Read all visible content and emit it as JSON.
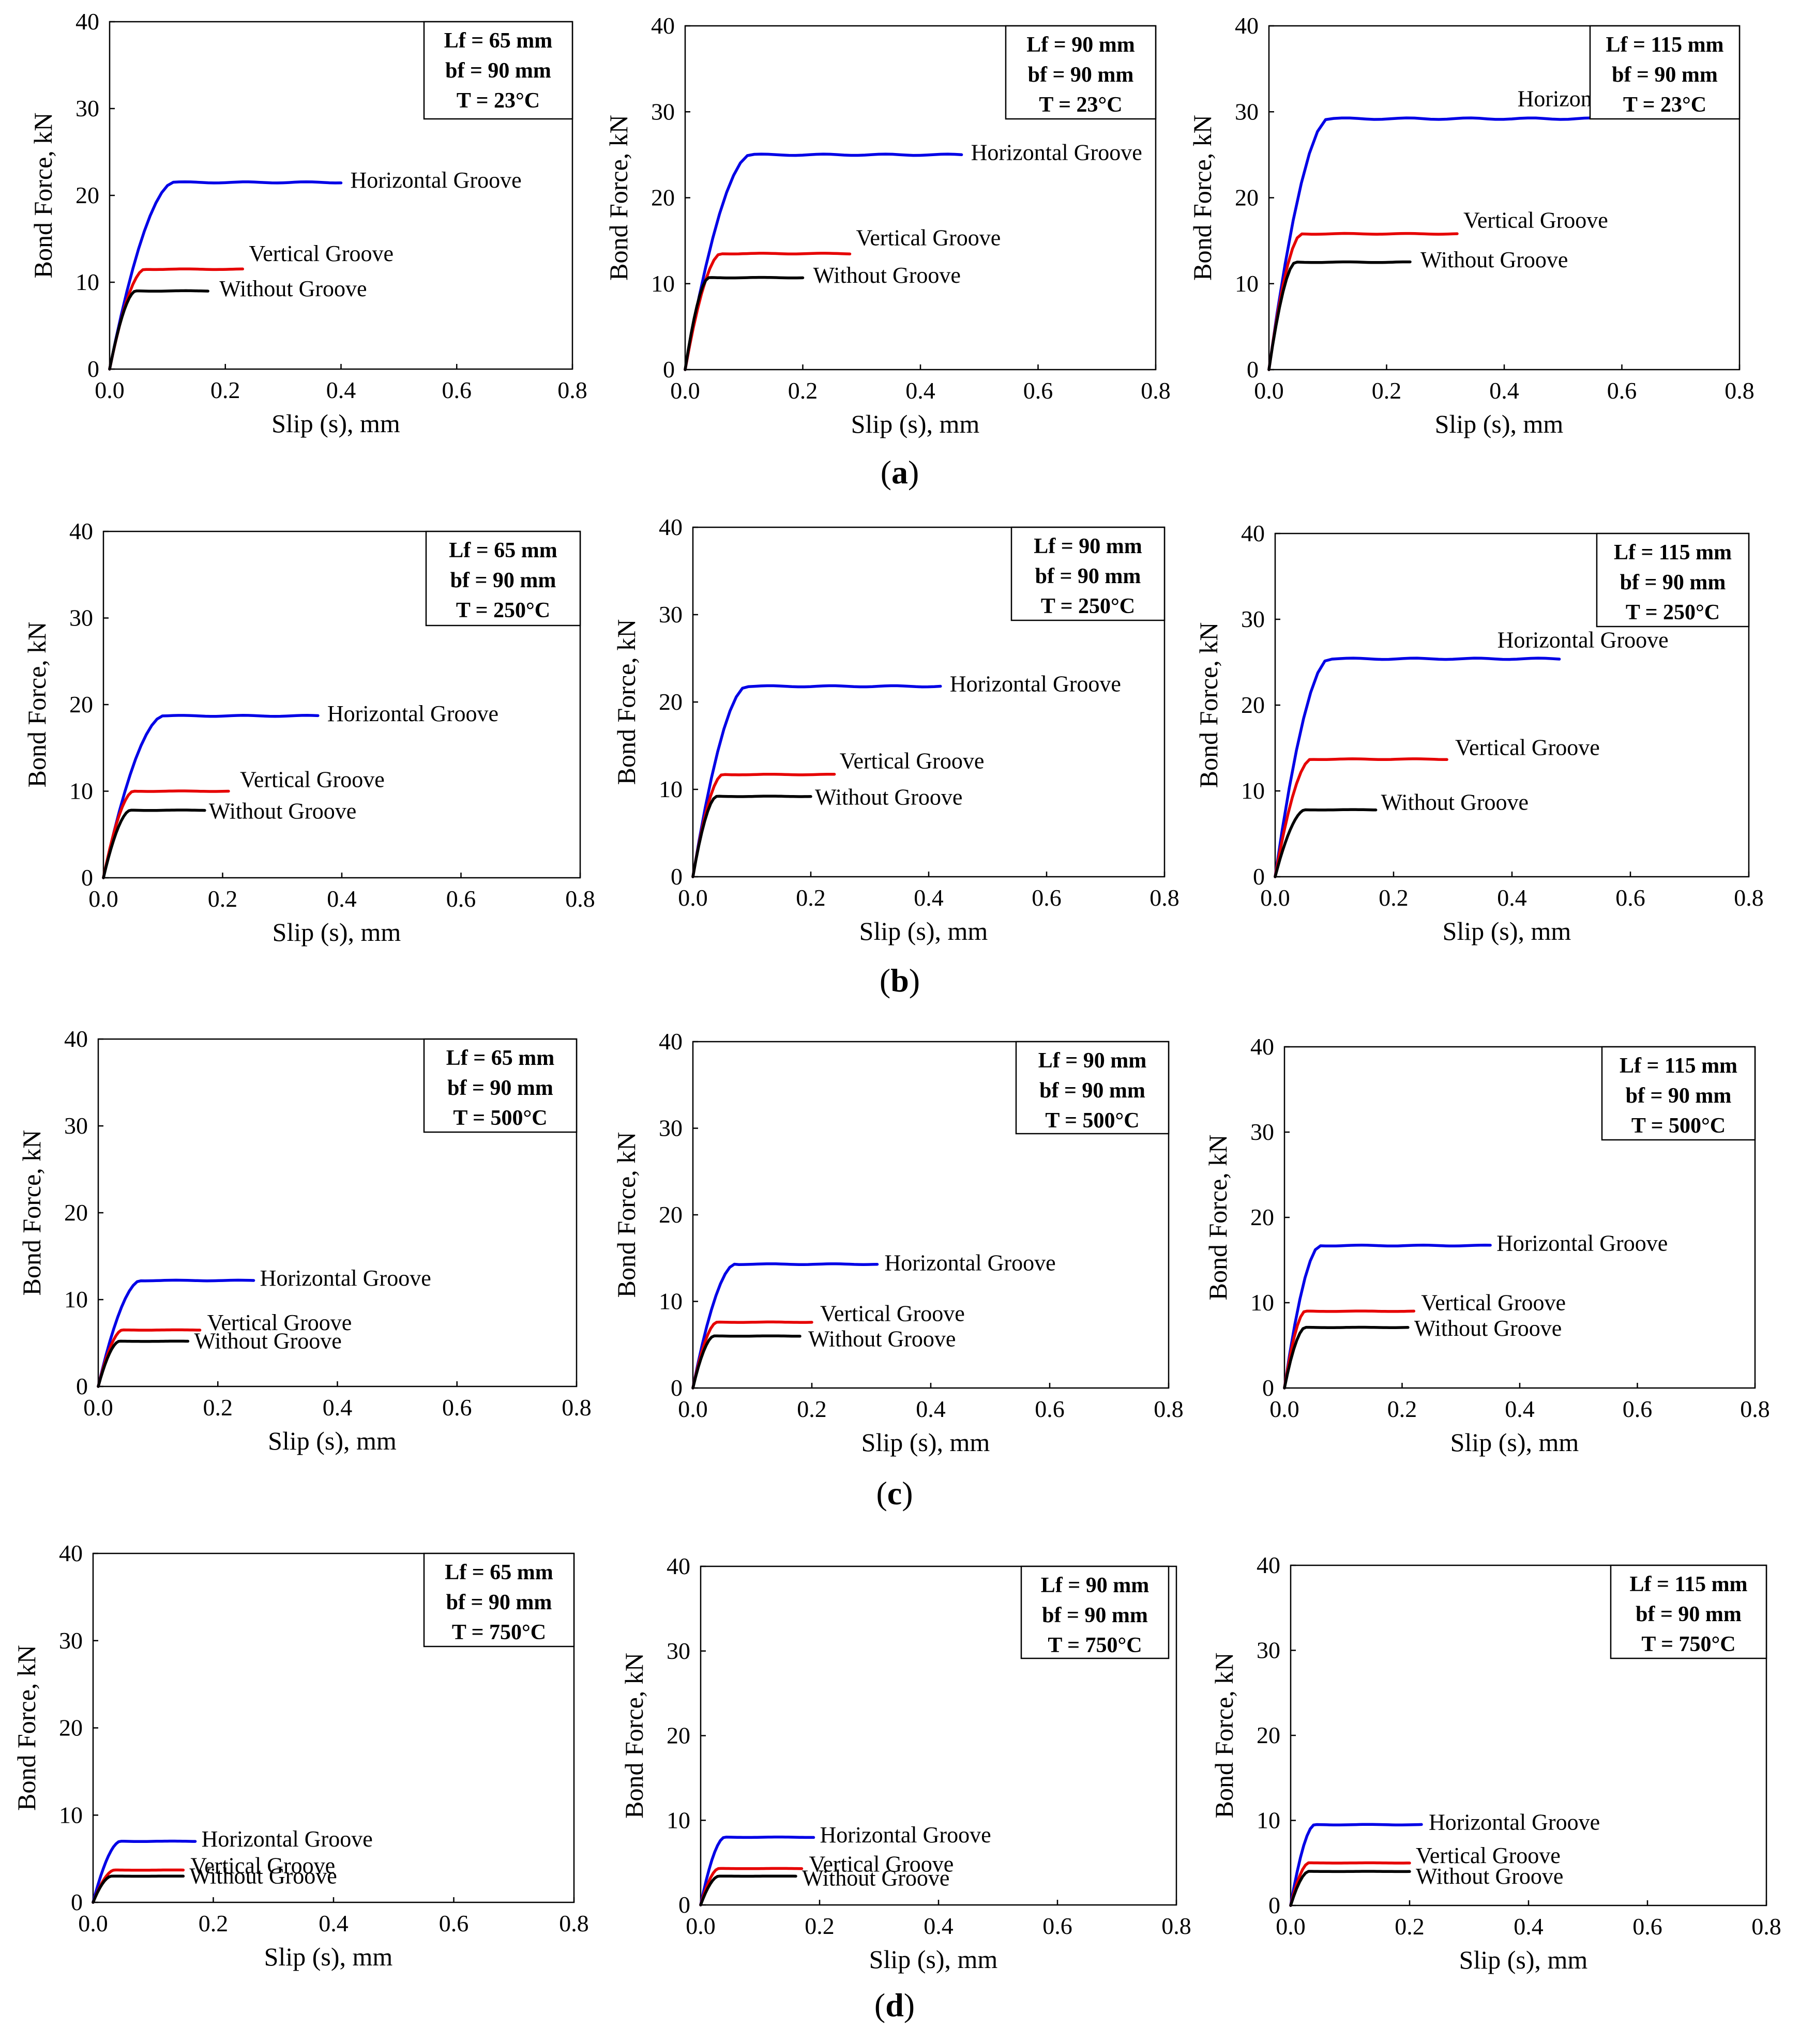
{
  "labels": {
    "xlabel": "Slip (s), mm",
    "ylabel": "Bond Force, kN",
    "series_names": [
      "Horizontal Groove",
      "Vertical Groove",
      "Without Groove"
    ]
  },
  "row_labels": [
    "a",
    "b",
    "c",
    "d"
  ],
  "colors": {
    "horizontal": "#0000e6",
    "vertical": "#e60000",
    "without": "#000000"
  },
  "chart_data": [
    {
      "row": "a",
      "type": "line",
      "title": "",
      "xlabel": "Slip (s), mm",
      "ylabel": "Bond Force, kN",
      "xlim": [
        0,
        0.8
      ],
      "ylim": [
        0,
        40
      ],
      "xticks": [
        "0.0",
        "0.2",
        "0.4",
        "0.6",
        "0.8"
      ],
      "yticks": [
        "0",
        "10",
        "20",
        "30",
        "40"
      ],
      "annotation": [
        "Lf = 65 mm",
        "bf = 90 mm",
        "T = 23°C"
      ],
      "series": [
        {
          "name": "Horizontal Groove",
          "knee": 0.11,
          "plateau": 21.5,
          "end": 0.4
        },
        {
          "name": "Vertical Groove",
          "knee": 0.06,
          "plateau": 11.5,
          "end": 0.23
        },
        {
          "name": "Without Groove",
          "knee": 0.045,
          "plateau": 9.0,
          "end": 0.17
        }
      ]
    },
    {
      "row": "a",
      "type": "line",
      "title": "",
      "xlabel": "Slip (s), mm",
      "ylabel": "Bond Force, kN",
      "xlim": [
        0,
        0.8
      ],
      "ylim": [
        0,
        40
      ],
      "xticks": [
        "0.0",
        "0.2",
        "0.4",
        "0.6",
        "0.8"
      ],
      "yticks": [
        "0",
        "10",
        "20",
        "30",
        "40"
      ],
      "annotation": [
        "Lf = 90 mm",
        "bf = 90 mm",
        "T = 23°C"
      ],
      "series": [
        {
          "name": "Horizontal Groove",
          "knee": 0.11,
          "plateau": 25.0,
          "end": 0.47
        },
        {
          "name": "Vertical Groove",
          "knee": 0.06,
          "plateau": 13.5,
          "end": 0.28
        },
        {
          "name": "Without Groove",
          "knee": 0.04,
          "plateau": 10.7,
          "end": 0.2
        }
      ]
    },
    {
      "row": "a",
      "type": "line",
      "title": "",
      "xlabel": "Slip (s), mm",
      "ylabel": "Bond Force, kN",
      "xlim": [
        0,
        0.8
      ],
      "ylim": [
        0,
        40
      ],
      "xticks": [
        "0.0",
        "0.2",
        "0.4",
        "0.6",
        "0.8"
      ],
      "yticks": [
        "0",
        "10",
        "20",
        "30",
        "40"
      ],
      "annotation": [
        "Lf = 115 mm",
        "bf = 90 mm",
        "T = 23°C"
      ],
      "series": [
        {
          "name": "Horizontal Groove",
          "knee": 0.1,
          "plateau": 29.2,
          "end": 0.55
        },
        {
          "name": "Vertical Groove",
          "knee": 0.055,
          "plateau": 15.8,
          "end": 0.32
        },
        {
          "name": "Without Groove",
          "knee": 0.045,
          "plateau": 12.5,
          "end": 0.24
        }
      ]
    },
    {
      "row": "b",
      "type": "line",
      "title": "",
      "xlabel": "Slip (s), mm",
      "ylabel": "Bond Force, kN",
      "xlim": [
        0,
        0.8
      ],
      "ylim": [
        0,
        40
      ],
      "xticks": [
        "0.0",
        "0.2",
        "0.4",
        "0.6",
        "0.8"
      ],
      "yticks": [
        "0",
        "10",
        "20",
        "30",
        "40"
      ],
      "annotation": [
        "Lf = 65 mm",
        "bf = 90 mm",
        "T = 250°C"
      ],
      "series": [
        {
          "name": "Horizontal Groove",
          "knee": 0.1,
          "plateau": 18.7,
          "end": 0.36
        },
        {
          "name": "Vertical Groove",
          "knee": 0.05,
          "plateau": 10.0,
          "end": 0.21
        },
        {
          "name": "Without Groove",
          "knee": 0.045,
          "plateau": 7.8,
          "end": 0.17
        }
      ]
    },
    {
      "row": "b",
      "type": "line",
      "title": "",
      "xlabel": "Slip (s), mm",
      "ylabel": "Bond Force, kN",
      "xlim": [
        0,
        0.8
      ],
      "ylim": [
        0,
        40
      ],
      "xticks": [
        "0.0",
        "0.2",
        "0.4",
        "0.6",
        "0.8"
      ],
      "yticks": [
        "0",
        "10",
        "20",
        "30",
        "40"
      ],
      "annotation": [
        "Lf = 90 mm",
        "bf = 90 mm",
        "T = 250°C"
      ],
      "series": [
        {
          "name": "Horizontal Groove",
          "knee": 0.09,
          "plateau": 21.8,
          "end": 0.42
        },
        {
          "name": "Vertical Groove",
          "knee": 0.05,
          "plateau": 11.7,
          "end": 0.24
        },
        {
          "name": "Without Groove",
          "knee": 0.04,
          "plateau": 9.2,
          "end": 0.2
        }
      ]
    },
    {
      "row": "b",
      "type": "line",
      "title": "",
      "xlabel": "Slip (s), mm",
      "ylabel": "Bond Force, kN",
      "xlim": [
        0,
        0.8
      ],
      "ylim": [
        0,
        40
      ],
      "xticks": [
        "0.0",
        "0.2",
        "0.4",
        "0.6",
        "0.8"
      ],
      "yticks": [
        "0",
        "10",
        "20",
        "30",
        "40"
      ],
      "annotation": [
        "Lf = 115 mm",
        "bf = 90 mm",
        "T = 250°C"
      ],
      "series": [
        {
          "name": "Horizontal Groove",
          "knee": 0.09,
          "plateau": 25.4,
          "end": 0.48
        },
        {
          "name": "Vertical Groove",
          "knee": 0.06,
          "plateau": 13.7,
          "end": 0.29
        },
        {
          "name": "Without Groove",
          "knee": 0.05,
          "plateau": 7.8,
          "end": 0.17
        }
      ]
    },
    {
      "row": "c",
      "type": "line",
      "title": "",
      "xlabel": "Slip (s), mm",
      "ylabel": "Bond Force, kN",
      "xlim": [
        0,
        0.8
      ],
      "ylim": [
        0,
        40
      ],
      "xticks": [
        "0.0",
        "0.2",
        "0.4",
        "0.6",
        "0.8"
      ],
      "yticks": [
        "0",
        "10",
        "20",
        "30",
        "40"
      ],
      "annotation": [
        "Lf = 65 mm",
        "bf = 90 mm",
        "T = 500°C"
      ],
      "series": [
        {
          "name": "Horizontal Groove",
          "knee": 0.07,
          "plateau": 12.2,
          "end": 0.26
        },
        {
          "name": "Vertical Groove",
          "knee": 0.04,
          "plateau": 6.5,
          "end": 0.17
        },
        {
          "name": "Without Groove",
          "knee": 0.035,
          "plateau": 5.2,
          "end": 0.15
        }
      ]
    },
    {
      "row": "c",
      "type": "line",
      "title": "",
      "xlabel": "Slip (s), mm",
      "ylabel": "Bond Force, kN",
      "xlim": [
        0,
        0.8
      ],
      "ylim": [
        0,
        40
      ],
      "xticks": [
        "0.0",
        "0.2",
        "0.4",
        "0.6",
        "0.8"
      ],
      "yticks": [
        "0",
        "10",
        "20",
        "30",
        "40"
      ],
      "annotation": [
        "Lf = 90 mm",
        "bf = 90 mm",
        "T = 500°C"
      ],
      "series": [
        {
          "name": "Horizontal Groove",
          "knee": 0.07,
          "plateau": 14.3,
          "end": 0.31
        },
        {
          "name": "Vertical Groove",
          "knee": 0.04,
          "plateau": 7.6,
          "end": 0.2
        },
        {
          "name": "Without Groove",
          "knee": 0.035,
          "plateau": 6.0,
          "end": 0.18
        }
      ]
    },
    {
      "row": "c",
      "type": "line",
      "title": "",
      "xlabel": "Slip (s), mm",
      "ylabel": "Bond Force, kN",
      "xlim": [
        0,
        0.8
      ],
      "ylim": [
        0,
        40
      ],
      "xticks": [
        "0.0",
        "0.2",
        "0.4",
        "0.6",
        "0.8"
      ],
      "yticks": [
        "0",
        "10",
        "20",
        "30",
        "40"
      ],
      "annotation": [
        "Lf = 115 mm",
        "bf  = 90 mm",
        "T = 500°C"
      ],
      "series": [
        {
          "name": "Horizontal Groove",
          "knee": 0.06,
          "plateau": 16.7,
          "end": 0.35
        },
        {
          "name": "Vertical Groove",
          "knee": 0.035,
          "plateau": 9.0,
          "end": 0.22
        },
        {
          "name": "Without Groove",
          "knee": 0.035,
          "plateau": 7.1,
          "end": 0.21
        }
      ]
    },
    {
      "row": "d",
      "type": "line",
      "title": "",
      "xlabel": "Slip (s), mm",
      "ylabel": "Bond Force, kN",
      "xlim": [
        0,
        0.8
      ],
      "ylim": [
        0,
        40
      ],
      "xticks": [
        "0.0",
        "0.2",
        "0.4",
        "0.6",
        "0.8"
      ],
      "yticks": [
        "0",
        "10",
        "20",
        "30",
        "40"
      ],
      "annotation": [
        "Lf = 65 mm",
        "bf = 90 mm",
        "T = 750°C"
      ],
      "series": [
        {
          "name": "Horizontal Groove",
          "knee": 0.045,
          "plateau": 7.0,
          "end": 0.17
        },
        {
          "name": "Vertical Groove",
          "knee": 0.035,
          "plateau": 3.7,
          "end": 0.15
        },
        {
          "name": "Without Groove",
          "knee": 0.03,
          "plateau": 3.0,
          "end": 0.15
        }
      ]
    },
    {
      "row": "d",
      "type": "line",
      "title": "",
      "xlabel": "Slip (s), mm",
      "ylabel": "Bond Force, kN",
      "xlim": [
        0,
        0.8
      ],
      "ylim": [
        0,
        40
      ],
      "xticks": [
        "0.0",
        "0.2",
        "0.4",
        "0.6",
        "0.8"
      ],
      "yticks": [
        "0",
        "10",
        "20",
        "30",
        "40"
      ],
      "annotation": [
        "Lf = 90 mm",
        "bf = 90 mm",
        "T = 750°C"
      ],
      "series": [
        {
          "name": "Horizontal Groove",
          "knee": 0.04,
          "plateau": 8.0,
          "end": 0.19
        },
        {
          "name": "Vertical Groove",
          "knee": 0.03,
          "plateau": 4.3,
          "end": 0.17
        },
        {
          "name": "Without Groove",
          "knee": 0.03,
          "plateau": 3.4,
          "end": 0.16
        }
      ]
    },
    {
      "row": "d",
      "type": "line",
      "title": "",
      "xlabel": "Slip (s), mm",
      "ylabel": "Bond Force, kN",
      "xlim": [
        0,
        0.8
      ],
      "ylim": [
        0,
        40
      ],
      "xticks": [
        "0.0",
        "0.2",
        "0.4",
        "0.6",
        "0.8"
      ],
      "yticks": [
        "0",
        "10",
        "20",
        "30",
        "40"
      ],
      "annotation": [
        "Lf = 115 mm",
        "bf = 90 mm",
        "T = 750°C"
      ],
      "series": [
        {
          "name": "Horizontal Groove",
          "knee": 0.04,
          "plateau": 9.5,
          "end": 0.22
        },
        {
          "name": "Vertical Groove",
          "knee": 0.03,
          "plateau": 5.0,
          "end": 0.2
        },
        {
          "name": "Without Groove",
          "knee": 0.03,
          "plateau": 4.0,
          "end": 0.2
        }
      ]
    }
  ]
}
